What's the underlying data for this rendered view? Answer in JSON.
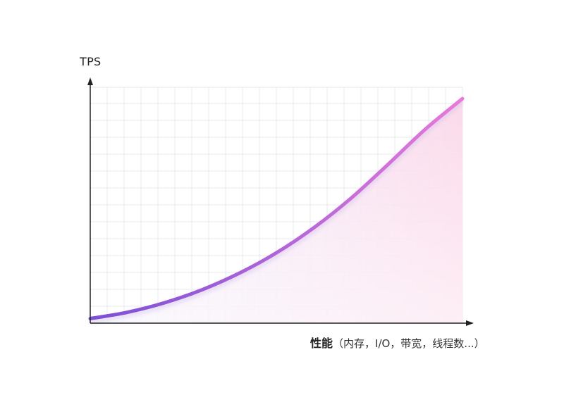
{
  "chart_data": {
    "type": "area",
    "ylabel": "TPS",
    "xlabel_main": "性能",
    "xlabel_detail": "（内存，I/O，带宽，线程数...）",
    "curve": "exponential",
    "x": [
      0,
      0.1,
      0.2,
      0.3,
      0.4,
      0.5,
      0.6,
      0.7,
      0.8,
      0.9,
      1.0
    ],
    "y": [
      0.0,
      0.028,
      0.07,
      0.127,
      0.2,
      0.29,
      0.4,
      0.53,
      0.68,
      0.835,
      0.97
    ],
    "xlim": [
      0,
      1
    ],
    "ylim": [
      -0.02,
      1.02
    ],
    "grid": true,
    "colors": {
      "line_start": "#7b4fd6",
      "line_end": "#e67ad9",
      "fill_start": "#ede7fb",
      "fill_end": "#fbd6e8",
      "axis": "#222222",
      "grid": "#eaeaea"
    }
  }
}
